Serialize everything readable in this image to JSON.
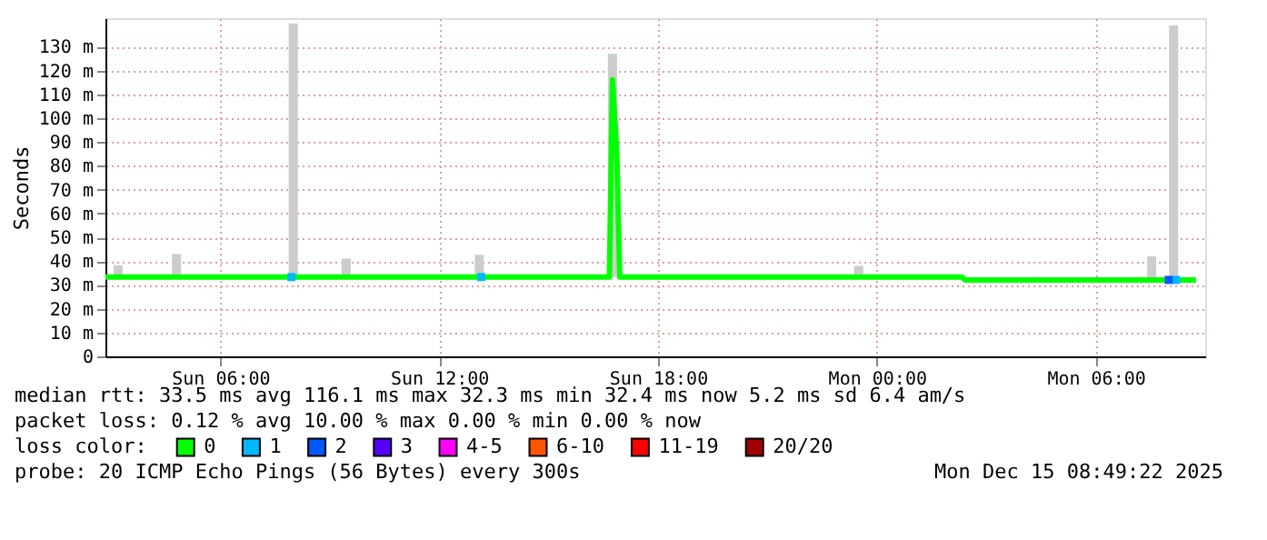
{
  "chart_data": {
    "type": "line",
    "ylabel": "Seconds",
    "xlim": [
      "2025-12-14T02:51",
      "2025-12-15T09:00"
    ],
    "xticks": [
      {
        "value": "2025-12-14T06:00",
        "label": "Sun 06:00"
      },
      {
        "value": "2025-12-14T12:00",
        "label": "Sun 12:00"
      },
      {
        "value": "2025-12-14T18:00",
        "label": "Sun 18:00"
      },
      {
        "value": "2025-12-15T00:00",
        "label": "Mon 00:00"
      },
      {
        "value": "2025-12-15T06:00",
        "label": "Mon 06:00"
      }
    ],
    "ylim": [
      0,
      142
    ],
    "yticks": [
      0,
      {
        "value": 10,
        "label": "10 m"
      },
      {
        "value": 20,
        "label": "20 m"
      },
      {
        "value": 30,
        "label": "30 m"
      },
      {
        "value": 40,
        "label": "40 m"
      },
      {
        "value": 50,
        "label": "50 m"
      },
      {
        "value": 60,
        "label": "60 m"
      },
      {
        "value": 70,
        "label": "70 m"
      },
      {
        "value": 80,
        "label": "80 m"
      },
      {
        "value": 90,
        "label": "90 m"
      },
      {
        "value": 100,
        "label": "100 m"
      },
      {
        "value": 110,
        "label": "110 m"
      },
      {
        "value": 120,
        "label": "120 m"
      },
      {
        "value": 130,
        "label": "130 m"
      }
    ],
    "grid": true,
    "legend": "bottom",
    "legend_title": "loss color:",
    "series": [
      {
        "type": "bar",
        "color": "#cccccc",
        "x": [
          "2025-12-14T03:12",
          "2025-12-14T04:48",
          "2025-12-14T08:00",
          "2025-12-14T09:27",
          "2025-12-14T13:06",
          "2025-12-14T16:45",
          "2025-12-14T23:30",
          "2025-12-15T07:32",
          "2025-12-15T08:08"
        ],
        "base": [
          33.3,
          33.3,
          33.3,
          33.3,
          33.3,
          33.3,
          33.3,
          32.1,
          32.1
        ],
        "values": [
          5,
          9.7,
          106.5,
          7.7,
          9.3,
          93.7,
          4.7,
          9.9,
          106.9
        ]
      },
      {
        "name": "0",
        "color": "#00ff00",
        "x": [
          "2025-12-14T02:51",
          "2025-12-14T16:40",
          "2025-12-14T16:45",
          "2025-12-14T16:52",
          "2025-12-14T16:57",
          "2025-12-15T02:20",
          "2025-12-15T02:25",
          "2025-12-15T08:45"
        ],
        "values": [
          33.3,
          33.3,
          116.1,
          86.9,
          33.3,
          33.3,
          32.1,
          32.1
        ]
      },
      {
        "name": "1",
        "type": "scatter",
        "color": "#00b8ff",
        "x": [
          "2025-12-14T07:57",
          "2025-12-14T13:09",
          "2025-12-15T08:12"
        ],
        "values": [
          33.3,
          33.3,
          32.1
        ]
      },
      {
        "name": "2",
        "type": "scatter",
        "color": "#0059ff",
        "x": [
          "2025-12-15T08:00"
        ],
        "values": [
          32.1
        ]
      },
      {
        "name": "3",
        "color": "#5500ff"
      },
      {
        "name": "4-5",
        "color": "#ff00fe"
      },
      {
        "name": "6-10",
        "color": "#ff5500"
      },
      {
        "name": "11-19",
        "color": "#ff0000"
      },
      {
        "name": "20/20",
        "color": "#a10000"
      }
    ],
    "annotations": [
      "median rtt:  33.5 ms avg  116.1 ms max  32.3 ms min  32.4 ms now  5.2 ms sd  6.4   am/s",
      "packet loss: 0.12 % avg  10.00 % max  0.00 % min  0.00 % now",
      "probe:       20 ICMP Echo Pings (56 Bytes) every 300s",
      "Mon Dec 15 08:49:22 2025"
    ]
  }
}
